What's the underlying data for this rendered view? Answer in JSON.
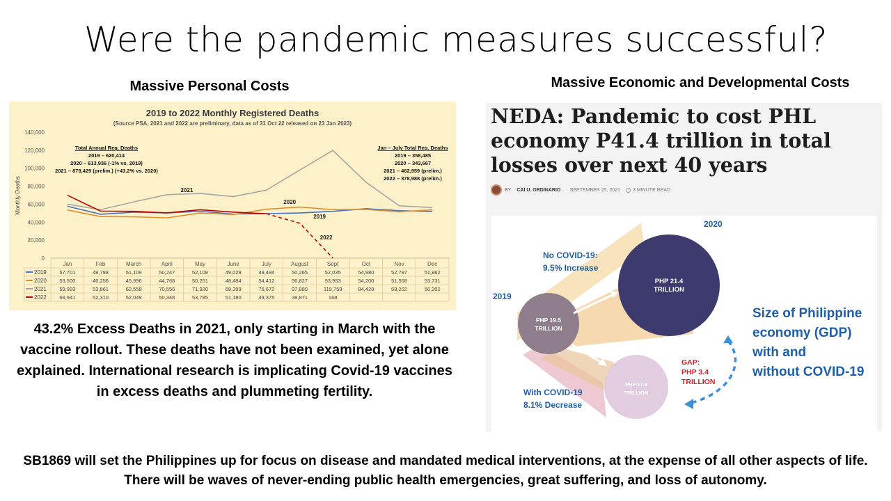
{
  "slide": {
    "title": "Were the pandemic measures successful?",
    "left_heading": "Massive Personal Costs",
    "right_heading": "Massive Economic and Developmental Costs",
    "left_body": "43.2% Excess Deaths in 2021, only starting in March with the vaccine rollout.  These deaths have not been examined, yet alone explained. International research is implicating Covid-19 vaccines in excess deaths and plummeting fertility.",
    "bottom_text": "SB1869  will set the Philippines up for focus on disease and mandated medical interventions, at the expense of all other aspects of life.  There will be waves of never-ending public health emergencies, great suffering, and loss of autonomy."
  },
  "chart_data": {
    "type": "line",
    "title": "2019 to 2022 Monthly Registered Deaths",
    "subtitle": "(Source PSA, 2021 and 2022 are preliminary, data as of 31 Oct 22 released on 23 Jan 2023)",
    "ylabel": "Monthly Deaths",
    "ylim": [
      0,
      140000
    ],
    "yticks": [
      0,
      20000,
      40000,
      60000,
      80000,
      100000,
      120000,
      140000
    ],
    "ytick_labels": [
      "0",
      "20,000",
      "40,000",
      "60,000",
      "80,000",
      "100,000",
      "120,000",
      "140,000"
    ],
    "categories": [
      "Jan",
      "Feb",
      "March",
      "April",
      "May",
      "June",
      "July",
      "August",
      "Sept",
      "Oct",
      "Nov",
      "Dec"
    ],
    "series": [
      {
        "name": "2019",
        "color": "#4472c4",
        "dashed_from": null,
        "values": [
          57701,
          48798,
          51109,
          50247,
          52108,
          49028,
          49494,
          50265,
          52035,
          54980,
          52787,
          51862
        ],
        "cells": [
          "57,701",
          "48,798",
          "51,109",
          "50,247",
          "52,108",
          "49,028",
          "49,494",
          "50,265",
          "52,035",
          "54,980",
          "52,787",
          "51,862"
        ]
      },
      {
        "name": "2020",
        "color": "#e08e2e",
        "dashed_from": null,
        "values": [
          53500,
          46256,
          45996,
          44768,
          50251,
          48484,
          54412,
          56827,
          53953,
          54200,
          51558,
          53731
        ],
        "cells": [
          "53,500",
          "46,256",
          "45,996",
          "44,768",
          "50,251",
          "48,484",
          "54,412",
          "56,827",
          "53,953",
          "54,200",
          "51,558",
          "53,731"
        ]
      },
      {
        "name": "2021",
        "color": "#a5a5a5",
        "dashed_from": null,
        "values": [
          59993,
          53861,
          62558,
          70556,
          71920,
          68399,
          75672,
          97880,
          119758,
          84428,
          58202,
          56202
        ],
        "cells": [
          "59,993",
          "53,861",
          "62,558",
          "70,556",
          "71,920",
          "68,399",
          "75,672",
          "97,880",
          "119,758",
          "84,428",
          "58,202",
          "56,202"
        ]
      },
      {
        "name": "2022",
        "color": "#c00000",
        "dashed_from": 6,
        "values": [
          69941,
          52310,
          52049,
          50348,
          53785,
          51180,
          49375,
          38871,
          168,
          null,
          null,
          null
        ],
        "cells": [
          "69,941",
          "52,310",
          "52,049",
          "50,348",
          "53,785",
          "51,180",
          "49,375",
          "38,871",
          "168",
          "",
          "",
          ""
        ]
      }
    ],
    "annotations": {
      "left_box": [
        "Total Annual Reg. Deaths",
        "2019 – 620,414",
        "2020 – 613,936 (-1% vs. 2019)",
        "2021 – 879,429 (prelim.) (+43.2% vs. 2020)"
      ],
      "right_box": [
        "Jan – July Total Reg. Deaths",
        "2019 – 358,485",
        "2020 – 343,667",
        "2021 – 462,959 (prelim.)",
        "2022 – 378,988 (prelim.)"
      ],
      "series_labels": [
        {
          "text": "2021",
          "series": "2021",
          "x_index": 3.6,
          "y": 73500
        },
        {
          "text": "2020",
          "series": "2020",
          "x_index": 6.7,
          "y": 60500
        },
        {
          "text": "2019",
          "series": "2019",
          "x_index": 7.6,
          "y": 44000
        },
        {
          "text": "2022",
          "series": "2022",
          "x_index": 7.8,
          "y": 21000
        }
      ]
    },
    "grid": false,
    "legend": "table-below"
  },
  "article": {
    "headline": "NEDA: Pandemic to cost PHL economy P41.4 trillion in total losses over next 40 years",
    "byline_prefix": "BY",
    "author": "CAI U. ORDINARIO",
    "date": "SEPTEMBER 25, 2021",
    "read_time": "3 MINUTE READ",
    "avatar_icon": "author-avatar",
    "infographic": {
      "year_2020": "2020",
      "year_2019": "2019",
      "no_covid_1": "No COVID-19:",
      "no_covid_2": "9.5% Increase",
      "big_circle_1": "PHP 21.4",
      "big_circle_2": "TRILLION",
      "small_circle_1": "PHP 19.5",
      "small_circle_2": "TRILLION",
      "third_circle_1": "PHP 17.9",
      "third_circle_2": "TRILLION",
      "gap_1": "GAP:",
      "gap_2": "PHP 3.4",
      "gap_3": "TRILLION",
      "with_covid_1": "With COVID-19",
      "with_covid_2": "8.1% Decrease",
      "size_1": "Size of Philippine",
      "size_2": "economy (GDP)",
      "size_3": "with and",
      "size_4": "without COVID-19",
      "colors": {
        "navy": "#3d3a6e",
        "mauve": "#8e7e8c",
        "lilac": "#e2cde0",
        "blue": "#1f5fa8",
        "red": "#d31f26",
        "orange": "#efbd7f"
      }
    }
  }
}
